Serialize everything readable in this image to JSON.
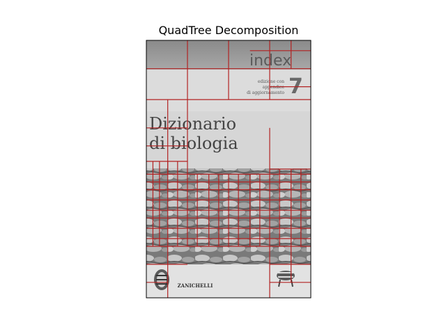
{
  "chart_data": {
    "type": "image-overlay",
    "title": "QuadTree Decomposition",
    "image_description_text": {
      "publisher_series": "index",
      "volume_number": "7",
      "edition_note_lines": [
        "edizione con",
        "appendice",
        "di aggiornamento"
      ],
      "book_title_lines": [
        "Dizionario",
        "di biologia"
      ],
      "publisher": "ZANICHELLI"
    },
    "grid_color": "#b22222",
    "axes_visible": false,
    "quadtree_lines": [
      {
        "o": "h",
        "at": 0.11,
        "from": 0.0,
        "to": 1.0
      },
      {
        "o": "h",
        "at": 0.23,
        "from": 0.0,
        "to": 1.0
      },
      {
        "o": "h",
        "at": 0.04,
        "from": 0.63,
        "to": 1.0
      },
      {
        "o": "h",
        "at": 0.18,
        "from": 0.75,
        "to": 1.0
      },
      {
        "o": "h",
        "at": 0.34,
        "from": 0.0,
        "to": 0.25
      },
      {
        "o": "h",
        "at": 0.41,
        "from": 0.0,
        "to": 0.25
      },
      {
        "o": "h",
        "at": 0.47,
        "from": 0.0,
        "to": 0.25
      },
      {
        "o": "h",
        "at": 0.5,
        "from": 0.75,
        "to": 1.0
      },
      {
        "o": "h",
        "at": 0.52,
        "from": 0.0,
        "to": 1.0
      },
      {
        "o": "h",
        "at": 0.55,
        "from": 0.0,
        "to": 1.0
      },
      {
        "o": "h",
        "at": 0.58,
        "from": 0.0,
        "to": 1.0
      },
      {
        "o": "h",
        "at": 0.62,
        "from": 0.0,
        "to": 1.0
      },
      {
        "o": "h",
        "at": 0.66,
        "from": 0.0,
        "to": 1.0
      },
      {
        "o": "h",
        "at": 0.69,
        "from": 0.0,
        "to": 1.0
      },
      {
        "o": "h",
        "at": 0.73,
        "from": 0.0,
        "to": 1.0
      },
      {
        "o": "h",
        "at": 0.77,
        "from": 0.0,
        "to": 1.0
      },
      {
        "o": "h",
        "at": 0.8,
        "from": 0.0,
        "to": 1.0
      },
      {
        "o": "h",
        "at": 0.87,
        "from": 0.0,
        "to": 0.25
      },
      {
        "o": "h",
        "at": 0.87,
        "from": 0.75,
        "to": 1.0
      },
      {
        "o": "h",
        "at": 0.94,
        "from": 0.0,
        "to": 0.13
      },
      {
        "o": "h",
        "at": 0.94,
        "from": 0.75,
        "to": 1.0
      },
      {
        "o": "v",
        "at": 0.25,
        "from": 0.0,
        "to": 0.23
      },
      {
        "o": "v",
        "at": 0.5,
        "from": 0.0,
        "to": 0.23
      },
      {
        "o": "v",
        "at": 0.75,
        "from": 0.0,
        "to": 0.23
      },
      {
        "o": "v",
        "at": 0.88,
        "from": 0.0,
        "to": 0.11
      },
      {
        "o": "v",
        "at": 0.13,
        "from": 0.23,
        "to": 0.52
      },
      {
        "o": "v",
        "at": 0.25,
        "from": 0.23,
        "to": 0.52
      },
      {
        "o": "v",
        "at": 0.75,
        "from": 0.34,
        "to": 0.52
      },
      {
        "o": "v",
        "at": 0.04,
        "from": 0.47,
        "to": 0.8
      },
      {
        "o": "v",
        "at": 0.08,
        "from": 0.47,
        "to": 0.8
      },
      {
        "o": "v",
        "at": 0.13,
        "from": 0.47,
        "to": 0.8
      },
      {
        "o": "v",
        "at": 0.19,
        "from": 0.47,
        "to": 0.8
      },
      {
        "o": "v",
        "at": 0.25,
        "from": 0.52,
        "to": 0.8
      },
      {
        "o": "v",
        "at": 0.31,
        "from": 0.52,
        "to": 0.8
      },
      {
        "o": "v",
        "at": 0.38,
        "from": 0.52,
        "to": 0.8
      },
      {
        "o": "v",
        "at": 0.44,
        "from": 0.52,
        "to": 0.8
      },
      {
        "o": "v",
        "at": 0.5,
        "from": 0.52,
        "to": 0.8
      },
      {
        "o": "v",
        "at": 0.56,
        "from": 0.52,
        "to": 0.8
      },
      {
        "o": "v",
        "at": 0.63,
        "from": 0.52,
        "to": 0.8
      },
      {
        "o": "v",
        "at": 0.69,
        "from": 0.52,
        "to": 0.8
      },
      {
        "o": "v",
        "at": 0.75,
        "from": 0.52,
        "to": 0.8
      },
      {
        "o": "v",
        "at": 0.81,
        "from": 0.5,
        "to": 0.8
      },
      {
        "o": "v",
        "at": 0.88,
        "from": 0.5,
        "to": 0.8
      },
      {
        "o": "v",
        "at": 0.94,
        "from": 0.5,
        "to": 0.8
      },
      {
        "o": "v",
        "at": 0.13,
        "from": 0.8,
        "to": 1.0
      },
      {
        "o": "v",
        "at": 0.75,
        "from": 0.8,
        "to": 1.0
      },
      {
        "o": "v",
        "at": 0.88,
        "from": 0.8,
        "to": 0.94
      }
    ]
  }
}
